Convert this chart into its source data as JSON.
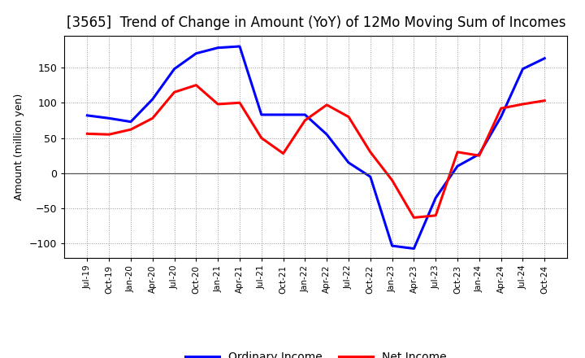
{
  "title": "[3565]  Trend of Change in Amount (YoY) of 12Mo Moving Sum of Incomes",
  "ylabel": "Amount (million yen)",
  "x_labels": [
    "Jul-19",
    "Oct-19",
    "Jan-20",
    "Apr-20",
    "Jul-20",
    "Oct-20",
    "Jan-21",
    "Apr-21",
    "Jul-21",
    "Oct-21",
    "Jan-22",
    "Apr-22",
    "Jul-22",
    "Oct-22",
    "Jan-23",
    "Apr-23",
    "Jul-23",
    "Oct-23",
    "Jan-24",
    "Apr-24",
    "Jul-24",
    "Oct-24"
  ],
  "ordinary_income": [
    82,
    78,
    73,
    105,
    148,
    170,
    178,
    180,
    83,
    83,
    83,
    55,
    15,
    -5,
    -103,
    -107,
    -35,
    10,
    27,
    80,
    148,
    163
  ],
  "net_income": [
    56,
    55,
    62,
    78,
    115,
    125,
    98,
    100,
    50,
    28,
    75,
    97,
    80,
    30,
    -10,
    -63,
    -60,
    30,
    25,
    92,
    98,
    103
  ],
  "ordinary_color": "#0000FF",
  "net_color": "#FF0000",
  "ylim": [
    -120,
    195
  ],
  "yticks": [
    -100,
    -50,
    0,
    50,
    100,
    150
  ],
  "background_color": "#FFFFFF",
  "grid_color": "#999999",
  "line_width": 2.2,
  "title_fontsize": 12,
  "title_fontweight": "normal",
  "legend_ordinary": "Ordinary Income",
  "legend_net": "Net Income",
  "legend_fontsize": 10
}
